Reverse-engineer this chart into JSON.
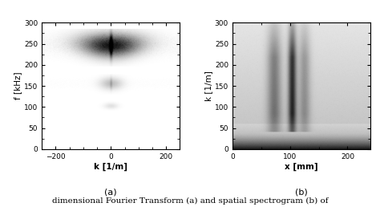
{
  "plot_a": {
    "title": "(a)",
    "xlabel": "k [1/m]",
    "ylabel": "f [kHz]",
    "xlim": [
      -250,
      250
    ],
    "ylim": [
      0,
      300
    ],
    "xticks": [
      -200,
      0,
      200
    ],
    "yticks": [
      0,
      50,
      100,
      150,
      200,
      250,
      300
    ]
  },
  "plot_b": {
    "title": "(b)",
    "xlabel": "x [mm]",
    "ylabel": "k [1/m]",
    "xlim": [
      0,
      240
    ],
    "ylim": [
      0,
      300
    ],
    "xticks": [
      0,
      100,
      200
    ],
    "yticks": [
      0,
      50,
      100,
      150,
      200,
      250,
      300
    ]
  },
  "caption": "dimensional Fourier Transform (a) and spatial spectrogram (b) of",
  "bg_color": "#ffffff",
  "figsize": [
    4.74,
    2.58
  ],
  "dpi": 100
}
